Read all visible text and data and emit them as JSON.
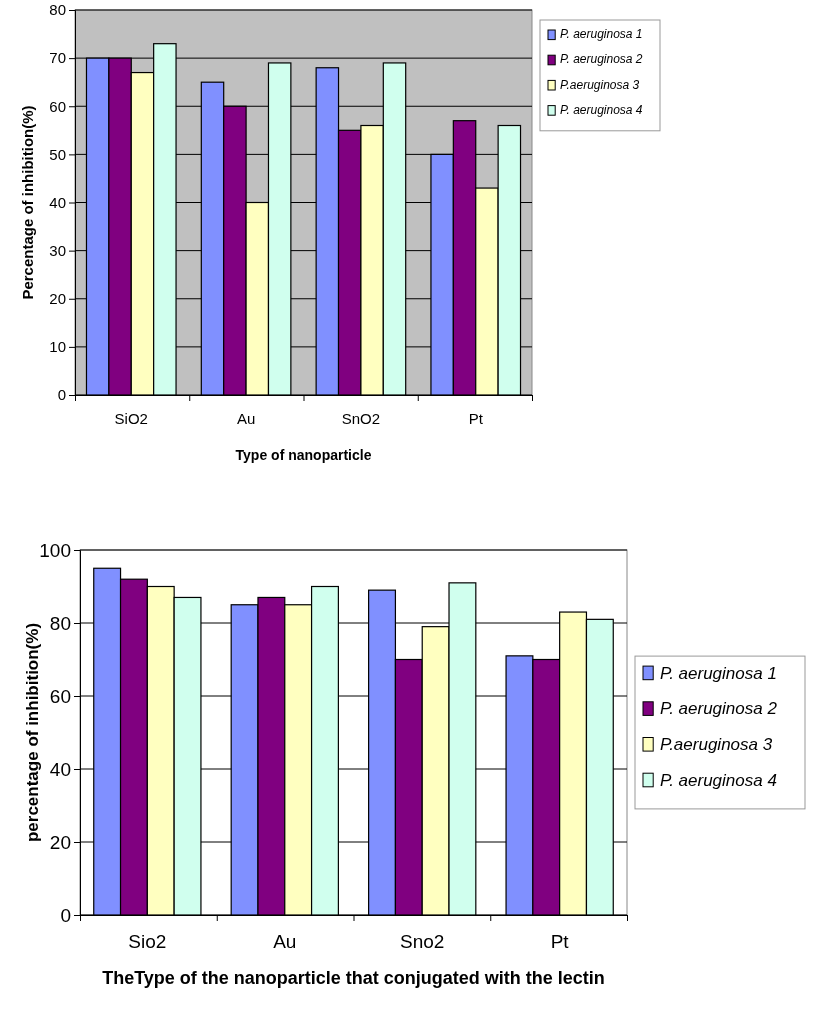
{
  "chart_data": [
    {
      "type": "bar",
      "xlabel": "Type of nanoparticle",
      "ylabel": "Percentage of inhibition(%)",
      "categories": [
        "SiO2",
        "Au",
        "SnO2",
        "Pt"
      ],
      "series": [
        {
          "name": "P. aeruginosa 1",
          "color": "#8090ff",
          "values": [
            70,
            65,
            68,
            50
          ]
        },
        {
          "name": "P. aeruginosa 2",
          "color": "#800080",
          "values": [
            70,
            60,
            55,
            57
          ]
        },
        {
          "name": "P.aeruginosa 3",
          "color": "#ffffc0",
          "values": [
            67,
            40,
            56,
            43
          ]
        },
        {
          "name": "P. aeruginosa 4",
          "color": "#d0ffee",
          "values": [
            73,
            69,
            69,
            56
          ]
        }
      ],
      "ylim": [
        0,
        80
      ],
      "yticks": [
        0,
        10,
        20,
        30,
        40,
        50,
        60,
        70,
        80
      ],
      "grid": "y",
      "legend": "top right"
    },
    {
      "type": "bar",
      "xlabel": "TheType of  the nanoparticle that conjugated with the lectin",
      "ylabel": "percentage of inhibition(%)",
      "categories": [
        "Sio2",
        "Au",
        "Sno2",
        "Pt"
      ],
      "series": [
        {
          "name": "P. aeruginosa 1",
          "color": "#8090ff",
          "values": [
            95,
            85,
            89,
            71
          ]
        },
        {
          "name": "P. aeruginosa 2",
          "color": "#800080",
          "values": [
            92,
            87,
            70,
            70
          ]
        },
        {
          "name": "P.aeruginosa 3",
          "color": "#ffffc0",
          "values": [
            90,
            85,
            79,
            83
          ]
        },
        {
          "name": "P. aeruginosa 4",
          "color": "#d0ffee",
          "values": [
            87,
            90,
            91,
            81
          ]
        }
      ],
      "ylim": [
        0,
        100
      ],
      "yticks": [
        0,
        20,
        40,
        60,
        80,
        100
      ],
      "grid": "y",
      "legend": "right"
    }
  ]
}
